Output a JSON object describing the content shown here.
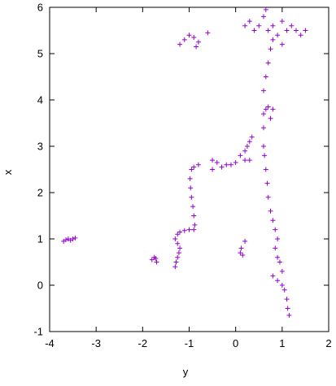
{
  "chart_data": {
    "type": "scatter",
    "title": "",
    "xlabel": "y",
    "ylabel": "x",
    "xlim": [
      -4,
      2
    ],
    "ylim": [
      -1,
      6
    ],
    "xticks": [
      -4,
      -3,
      -2,
      -1,
      0,
      1,
      2
    ],
    "yticks": [
      -1,
      0,
      1,
      2,
      3,
      4,
      5,
      6
    ],
    "xtick_labels": [
      "-4",
      "-3",
      "-2",
      "-1",
      "0",
      "1",
      "2"
    ],
    "ytick_labels": [
      "-1",
      "0",
      "1",
      "2",
      "3",
      "4",
      "5",
      "6"
    ],
    "grid": false,
    "legend": "none",
    "marker": "+",
    "color": "#9400d3",
    "series": [
      {
        "points": [
          [
            -3.7,
            0.95
          ],
          [
            -3.65,
            0.98
          ],
          [
            -3.6,
            1.0
          ],
          [
            -3.55,
            0.97
          ],
          [
            -3.5,
            1.0
          ],
          [
            -3.45,
            1.02
          ],
          [
            -1.8,
            0.55
          ],
          [
            -1.75,
            0.6
          ],
          [
            -1.7,
            0.5
          ],
          [
            -1.72,
            0.58
          ],
          [
            -1.3,
            0.4
          ],
          [
            -1.28,
            0.5
          ],
          [
            -1.25,
            0.6
          ],
          [
            -1.22,
            0.7
          ],
          [
            -1.2,
            0.8
          ],
          [
            -1.25,
            0.9
          ],
          [
            -1.3,
            1.0
          ],
          [
            -1.25,
            1.1
          ],
          [
            -1.2,
            1.15
          ],
          [
            -1.1,
            1.18
          ],
          [
            -1.0,
            1.2
          ],
          [
            -0.9,
            1.2
          ],
          [
            -0.88,
            1.3
          ],
          [
            -0.9,
            1.5
          ],
          [
            -0.92,
            1.7
          ],
          [
            -0.95,
            1.9
          ],
          [
            -0.97,
            2.1
          ],
          [
            -0.98,
            2.3
          ],
          [
            -0.95,
            2.5
          ],
          [
            -0.9,
            2.55
          ],
          [
            -0.8,
            2.6
          ],
          [
            -1.2,
            5.2
          ],
          [
            -1.1,
            5.3
          ],
          [
            -1.0,
            5.4
          ],
          [
            -0.9,
            5.35
          ],
          [
            -0.8,
            5.25
          ],
          [
            -0.85,
            5.15
          ],
          [
            -0.6,
            5.45
          ],
          [
            -0.5,
            2.5
          ],
          [
            -0.5,
            2.7
          ],
          [
            -0.4,
            2.65
          ],
          [
            -0.3,
            2.55
          ],
          [
            -0.2,
            2.6
          ],
          [
            -0.1,
            2.6
          ],
          [
            0.0,
            2.65
          ],
          [
            0.1,
            2.8
          ],
          [
            0.2,
            2.9
          ],
          [
            0.25,
            3.0
          ],
          [
            0.3,
            3.1
          ],
          [
            0.35,
            3.2
          ],
          [
            0.3,
            2.7
          ],
          [
            0.2,
            2.7
          ],
          [
            0.1,
            0.7
          ],
          [
            0.12,
            0.8
          ],
          [
            0.15,
            0.65
          ],
          [
            0.2,
            0.95
          ],
          [
            0.6,
            3.0
          ],
          [
            0.62,
            2.8
          ],
          [
            0.65,
            2.5
          ],
          [
            0.68,
            2.2
          ],
          [
            0.7,
            1.9
          ],
          [
            0.75,
            1.6
          ],
          [
            0.8,
            1.4
          ],
          [
            0.85,
            1.2
          ],
          [
            0.9,
            1.0
          ],
          [
            0.85,
            0.8
          ],
          [
            0.9,
            0.6
          ],
          [
            0.95,
            0.5
          ],
          [
            1.0,
            0.3
          ],
          [
            0.8,
            0.2
          ],
          [
            0.9,
            0.1
          ],
          [
            1.0,
            0.0
          ],
          [
            1.05,
            -0.1
          ],
          [
            1.1,
            -0.3
          ],
          [
            1.12,
            -0.5
          ],
          [
            1.15,
            -0.65
          ],
          [
            0.6,
            3.7
          ],
          [
            0.65,
            3.8
          ],
          [
            0.7,
            3.85
          ],
          [
            0.8,
            3.8
          ],
          [
            0.75,
            3.6
          ],
          [
            0.6,
            3.4
          ],
          [
            0.6,
            4.2
          ],
          [
            0.65,
            4.5
          ],
          [
            0.7,
            4.8
          ],
          [
            0.75,
            5.1
          ],
          [
            0.2,
            5.6
          ],
          [
            0.3,
            5.7
          ],
          [
            0.4,
            5.5
          ],
          [
            0.5,
            5.6
          ],
          [
            0.6,
            5.8
          ],
          [
            0.7,
            5.5
          ],
          [
            0.8,
            5.6
          ],
          [
            0.9,
            5.4
          ],
          [
            1.0,
            5.7
          ],
          [
            1.1,
            5.5
          ],
          [
            1.2,
            5.6
          ],
          [
            1.3,
            5.5
          ],
          [
            1.4,
            5.4
          ],
          [
            1.5,
            5.5
          ],
          [
            0.65,
            5.95
          ],
          [
            0.8,
            5.3
          ],
          [
            1.0,
            5.2
          ]
        ]
      }
    ]
  }
}
